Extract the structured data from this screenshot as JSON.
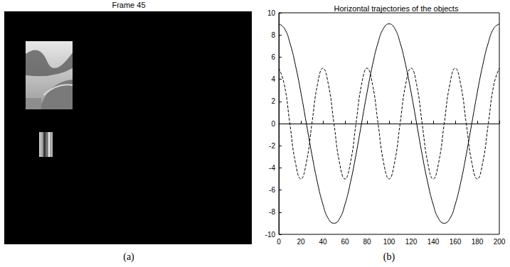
{
  "frame_panel": {
    "title": "Frame 45",
    "caption": "(a)"
  },
  "chart_data": {
    "type": "line",
    "title": "Horizontal trajectories of the objects",
    "caption": "(b)",
    "x": [
      0,
      5,
      10,
      15,
      20,
      25,
      30,
      35,
      40,
      45,
      50,
      55,
      60,
      65,
      70,
      75,
      80,
      85,
      90,
      95,
      100,
      105,
      110,
      115,
      120,
      125,
      130,
      135,
      140,
      145,
      150,
      155,
      160,
      165,
      170,
      175,
      180,
      185,
      190,
      195,
      200
    ],
    "series": [
      {
        "color": "#000000",
        "line_style": "solid",
        "values": [
          9,
          8.6,
          7.3,
          5.3,
          2.8,
          0,
          -2.8,
          -5.3,
          -7.3,
          -8.6,
          -9,
          -8.6,
          -7.3,
          -5.3,
          -2.8,
          0,
          2.8,
          5.3,
          7.3,
          8.6,
          9,
          8.6,
          7.3,
          5.3,
          2.8,
          0,
          -2.8,
          -5.3,
          -7.3,
          -8.6,
          -9,
          -8.6,
          -7.3,
          -5.3,
          -2.8,
          0,
          2.8,
          5.3,
          7.3,
          8.6,
          9
        ]
      },
      {
        "color": "#000000",
        "line_style": "dashed",
        "values": [
          5,
          3.5,
          0,
          -3.5,
          -5,
          -3.5,
          0,
          3.5,
          5,
          3.5,
          0,
          -3.5,
          -5,
          -3.5,
          0,
          3.5,
          5,
          3.5,
          0,
          -3.5,
          -5,
          -3.5,
          0,
          3.5,
          5,
          3.5,
          0,
          -3.5,
          -5,
          -3.5,
          0,
          3.5,
          5,
          3.5,
          0,
          -3.5,
          -5,
          -3.5,
          0,
          3.5,
          5
        ]
      }
    ],
    "xlim": [
      0,
      200
    ],
    "xticks": [
      0,
      20,
      40,
      60,
      80,
      100,
      120,
      140,
      160,
      180,
      200
    ],
    "ylim": [
      -10,
      10
    ],
    "yticks": [
      -10,
      -8,
      -6,
      -4,
      -2,
      0,
      2,
      4,
      6,
      8,
      10
    ],
    "grid": false
  }
}
